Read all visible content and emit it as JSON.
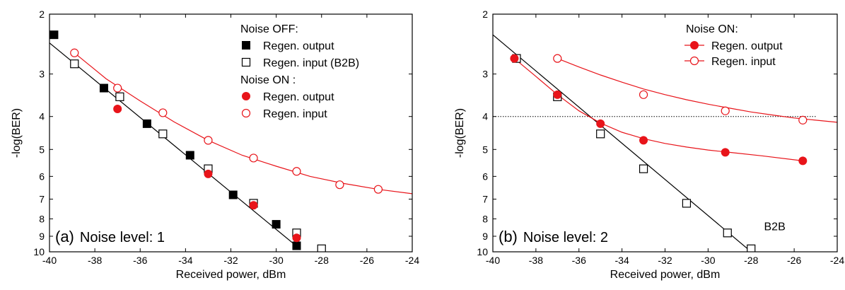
{
  "chart_data": [
    {
      "type": "scatter",
      "panel_label": "(a)",
      "panel_text": "Noise level: 1",
      "xlabel": "Received power, dBm",
      "ylabel": "-log(BER)",
      "xlim": [
        -40,
        -24
      ],
      "ylim": [
        2,
        10
      ],
      "y_scale": "log(-log BER), inverted",
      "xticks": [
        -40,
        -38,
        -36,
        -34,
        -32,
        -30,
        -28,
        -26,
        -24
      ],
      "yticks": [
        2,
        3,
        4,
        5,
        6,
        7,
        8,
        9,
        10
      ],
      "legend_groups": [
        {
          "title": "Noise OFF:",
          "entries": [
            {
              "label": "Regen. output",
              "marker": "filled-square",
              "color": "#000000"
            },
            {
              "label": "Regen. input (B2B)",
              "marker": "open-square",
              "color": "#000000"
            }
          ]
        },
        {
          "title": "Noise ON :",
          "entries": [
            {
              "label": "Regen. output",
              "marker": "filled-circle",
              "color": "#e8141a"
            },
            {
              "label": "Regen. input",
              "marker": "open-circle",
              "color": "#e8141a"
            }
          ]
        }
      ],
      "series": [
        {
          "name": "Regen. output",
          "group": "Noise OFF:",
          "marker": "filled-square",
          "color": "#000000",
          "points": [
            [
              -39.8,
              2.3
            ],
            [
              -37.6,
              3.3
            ],
            [
              -35.7,
              4.2
            ],
            [
              -33.8,
              5.2
            ],
            [
              -31.9,
              6.8
            ],
            [
              -30.0,
              8.3
            ],
            [
              -29.1,
              9.6
            ]
          ]
        },
        {
          "name": "Regen. input (B2B)",
          "group": "Noise OFF:",
          "marker": "open-square",
          "color": "#000000",
          "points": [
            [
              -38.9,
              2.8
            ],
            [
              -36.9,
              3.5
            ],
            [
              -35.0,
              4.5
            ],
            [
              -33.0,
              5.7
            ],
            [
              -31.0,
              7.2
            ],
            [
              -29.1,
              8.8
            ],
            [
              -28.0,
              9.8
            ]
          ]
        },
        {
          "name": "Regen. output",
          "group": "Noise ON :",
          "marker": "filled-circle",
          "color": "#e8141a",
          "points": [
            [
              -37.0,
              3.8
            ],
            [
              -33.0,
              5.9
            ],
            [
              -31.0,
              7.3
            ],
            [
              -29.1,
              9.1
            ]
          ]
        },
        {
          "name": "Regen. input",
          "group": "Noise ON :",
          "marker": "open-circle",
          "color": "#e8141a",
          "points": [
            [
              -38.9,
              2.6
            ],
            [
              -37.0,
              3.3
            ],
            [
              -35.0,
              3.9
            ],
            [
              -33.0,
              4.7
            ],
            [
              -31.0,
              5.3
            ],
            [
              -29.1,
              5.8
            ],
            [
              -27.2,
              6.35
            ],
            [
              -25.5,
              6.55
            ]
          ]
        }
      ],
      "fits": [
        {
          "color": "#000000",
          "points": [
            [
              -40.0,
              2.43
            ],
            [
              -29.0,
              9.75
            ]
          ]
        },
        {
          "color": "#e8141a",
          "points": [
            [
              -38.9,
              2.6
            ],
            [
              -37.5,
              3.1
            ],
            [
              -36.0,
              3.6
            ],
            [
              -34.5,
              4.15
            ],
            [
              -33.0,
              4.7
            ],
            [
              -31.5,
              5.2
            ],
            [
              -30.0,
              5.6
            ],
            [
              -28.5,
              6.0
            ],
            [
              -27.0,
              6.3
            ],
            [
              -25.5,
              6.55
            ],
            [
              -24.0,
              6.75
            ]
          ]
        }
      ]
    },
    {
      "type": "scatter",
      "panel_label": "(b)",
      "panel_text": "Noise level: 2",
      "xlabel": "Received power, dBm",
      "ylabel": "-log(BER)",
      "xlim": [
        -40,
        -24
      ],
      "ylim": [
        2,
        10
      ],
      "y_scale": "log(-log BER), inverted",
      "xticks": [
        -40,
        -38,
        -36,
        -34,
        -32,
        -30,
        -28,
        -26,
        -24
      ],
      "yticks": [
        2,
        3,
        4,
        5,
        6,
        7,
        8,
        9,
        10
      ],
      "threshold": {
        "y": 4,
        "x_range": [
          -40,
          -25
        ],
        "style": "dotted"
      },
      "annotation": {
        "text": "B2B",
        "x": -27.4,
        "y": 8.4
      },
      "legend_groups": [
        {
          "title": "Noise ON:",
          "entries": [
            {
              "label": "Regen. output",
              "marker": "filled-circle",
              "color": "#e8141a"
            },
            {
              "label": "Regen. input",
              "marker": "open-circle",
              "color": "#e8141a"
            }
          ]
        }
      ],
      "series": [
        {
          "name": "B2B",
          "marker": "open-square",
          "color": "#000000",
          "points": [
            [
              -38.9,
              2.7
            ],
            [
              -37.0,
              3.5
            ],
            [
              -35.0,
              4.5
            ],
            [
              -33.0,
              5.7
            ],
            [
              -31.0,
              7.2
            ],
            [
              -29.1,
              8.8
            ],
            [
              -28.0,
              9.8
            ]
          ]
        },
        {
          "name": "Regen. output",
          "group": "Noise ON:",
          "marker": "filled-circle",
          "color": "#e8141a",
          "points": [
            [
              -39.0,
              2.7
            ],
            [
              -37.0,
              3.45
            ],
            [
              -35.0,
              4.2
            ],
            [
              -33.0,
              4.7
            ],
            [
              -29.2,
              5.1
            ],
            [
              -25.6,
              5.4
            ]
          ]
        },
        {
          "name": "Regen. input",
          "group": "Noise ON:",
          "marker": "open-circle",
          "color": "#e8141a",
          "points": [
            [
              -37.0,
              2.7
            ],
            [
              -33.0,
              3.45
            ],
            [
              -29.2,
              3.85
            ],
            [
              -25.6,
              4.1
            ]
          ]
        }
      ],
      "fits": [
        {
          "color": "#000000",
          "points": [
            [
              -40.0,
              2.3
            ],
            [
              -28.0,
              10.0
            ]
          ]
        },
        {
          "color": "#e8141a",
          "points": [
            [
              -39.0,
              2.7
            ],
            [
              -38.0,
              3.05
            ],
            [
              -37.0,
              3.45
            ],
            [
              -36.0,
              3.85
            ],
            [
              -35.0,
              4.18
            ],
            [
              -34.0,
              4.45
            ],
            [
              -33.0,
              4.65
            ],
            [
              -32.0,
              4.8
            ],
            [
              -31.0,
              4.92
            ],
            [
              -30.0,
              5.02
            ],
            [
              -29.0,
              5.1
            ],
            [
              -27.5,
              5.22
            ],
            [
              -25.6,
              5.4
            ]
          ]
        },
        {
          "color": "#e8141a",
          "points": [
            [
              -37.0,
              2.7
            ],
            [
              -36.0,
              2.86
            ],
            [
              -35.0,
              3.02
            ],
            [
              -34.0,
              3.17
            ],
            [
              -33.0,
              3.32
            ],
            [
              -32.0,
              3.45
            ],
            [
              -31.0,
              3.57
            ],
            [
              -30.0,
              3.68
            ],
            [
              -29.0,
              3.78
            ],
            [
              -28.0,
              3.88
            ],
            [
              -27.0,
              3.96
            ],
            [
              -26.0,
              4.04
            ],
            [
              -25.0,
              4.1
            ],
            [
              -24.0,
              4.16
            ]
          ]
        }
      ]
    }
  ]
}
